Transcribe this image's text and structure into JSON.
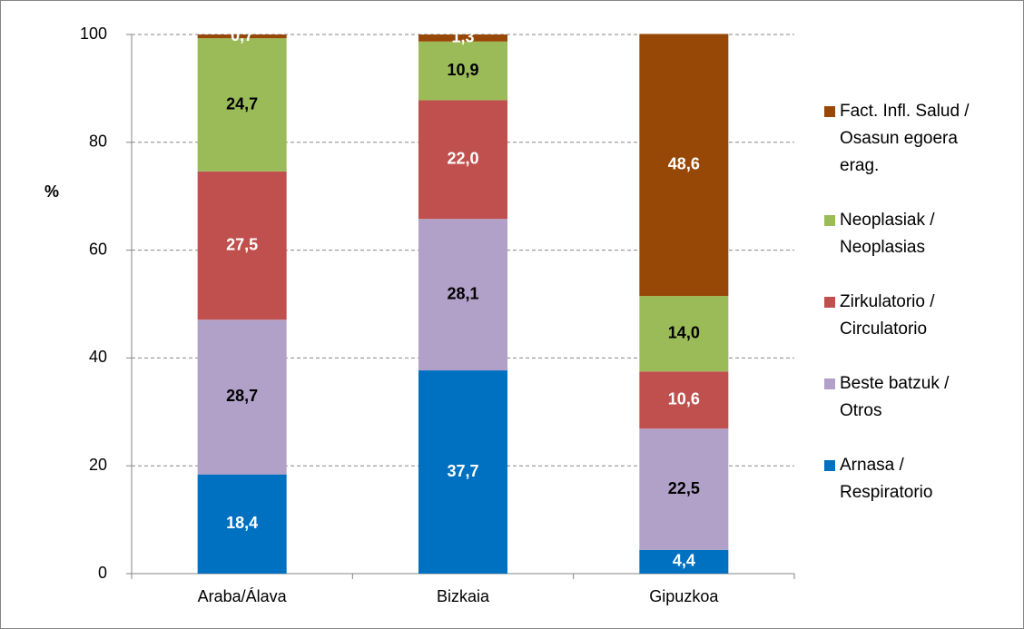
{
  "chart_data": {
    "type": "stacked-bar",
    "y_label": "%",
    "categories": [
      "Araba/Álava",
      "Bizkaia",
      "Gipuzkoa"
    ],
    "series": [
      {
        "name": "Arnasa / Respiratorio",
        "color": "#0070c0",
        "label_color": "#ffffff",
        "values": [
          18.4,
          37.7,
          4.4
        ],
        "value_labels": [
          "18,4",
          "37,7",
          "4,4"
        ]
      },
      {
        "name": "Beste batzuk / Otros",
        "color": "#b1a0c7",
        "label_color": "#000000",
        "values": [
          28.7,
          28.1,
          22.5
        ],
        "value_labels": [
          "28,7",
          "28,1",
          "22,5"
        ]
      },
      {
        "name": "Zirkulatorio / Circulatorio",
        "color": "#c0504d",
        "label_color": "#ffffff",
        "values": [
          27.5,
          22.0,
          10.6
        ],
        "value_labels": [
          "27,5",
          "22,0",
          "10,6"
        ]
      },
      {
        "name": "Neoplasiak / Neoplasias",
        "color": "#9bbb59",
        "label_color": "#000000",
        "values": [
          24.7,
          10.9,
          14.0
        ],
        "value_labels": [
          "24,7",
          "10,9",
          "14,0"
        ]
      },
      {
        "name": "Fact. Infl. Salud / Osasun egoera erag.",
        "color": "#974706",
        "label_color": "#ffffff",
        "values": [
          0.7,
          1.3,
          48.6
        ],
        "value_labels": [
          "0,7",
          "1,3",
          "48,6"
        ]
      }
    ],
    "ylim": [
      0,
      100
    ],
    "yticks": [
      0,
      20,
      40,
      60,
      80,
      100
    ],
    "grid": true,
    "legend": "right"
  }
}
